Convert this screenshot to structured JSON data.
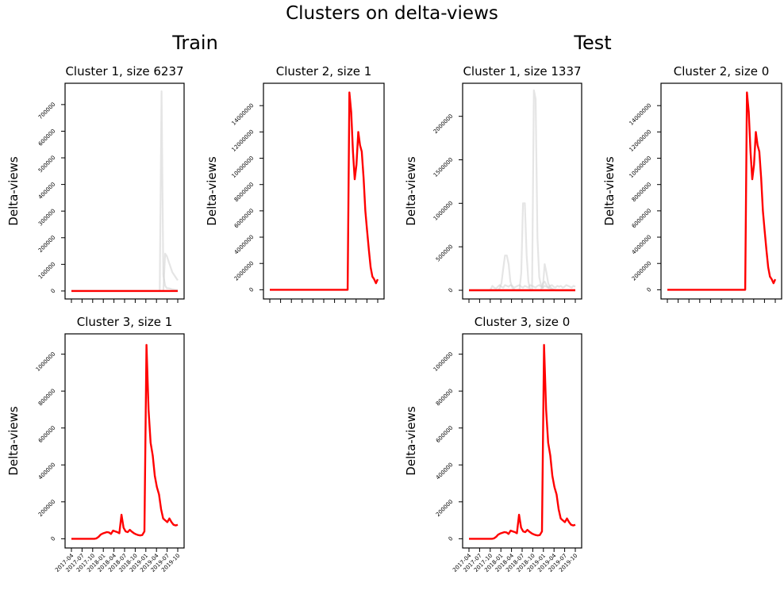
{
  "figure": {
    "title": "Clusters on delta-views",
    "groups": [
      "Train",
      "Test"
    ]
  },
  "colors": {
    "centroid": "#ff0000",
    "members": "#cfcfcf",
    "axis": "#000000"
  },
  "chart_data": [
    {
      "id": "train-c1",
      "type": "line",
      "group": "Train",
      "title": "Cluster 1, size 6237",
      "ylabel": "Delta-views",
      "ylim": [
        -30000,
        780000
      ],
      "yticks": [
        0,
        100000,
        200000,
        300000,
        400000,
        500000,
        600000,
        700000
      ],
      "xticks": [
        "2017-04",
        "2017-07",
        "2017-10",
        "2018-01",
        "2018-04",
        "2018-07",
        "2018-10",
        "2019-01",
        "2019-04",
        "2019-07",
        "2019-10"
      ],
      "show_xtick_labels": false,
      "centroid": [
        0,
        0,
        0,
        0,
        0,
        0,
        0,
        0,
        0,
        0,
        0,
        0,
        0,
        0,
        0,
        0,
        0,
        0,
        0,
        0,
        0,
        0,
        0,
        0,
        0,
        0,
        0,
        0,
        0,
        0,
        0,
        0,
        0,
        0,
        0,
        0,
        0,
        0,
        0,
        0,
        0,
        0,
        0,
        0,
        0,
        0,
        0,
        0,
        0,
        0,
        0,
        0,
        0,
        0,
        0,
        0,
        0,
        0,
        0,
        0
      ],
      "members": [
        [
          0,
          0,
          0,
          0,
          0,
          0,
          0,
          0,
          0,
          0,
          0,
          0,
          0,
          0,
          0,
          0,
          0,
          0,
          0,
          0,
          0,
          0,
          0,
          0,
          0,
          0,
          0,
          0,
          0,
          0,
          0,
          0,
          0,
          0,
          0,
          0,
          0,
          0,
          0,
          0,
          0,
          0,
          0,
          0,
          0,
          0,
          0,
          0,
          0,
          0,
          750000,
          60000,
          20000,
          10000,
          10000,
          8000,
          6000,
          5000,
          4000,
          4000
        ],
        [
          0,
          0,
          0,
          0,
          0,
          0,
          0,
          0,
          0,
          0,
          0,
          0,
          0,
          0,
          0,
          0,
          0,
          0,
          0,
          0,
          0,
          0,
          0,
          0,
          0,
          0,
          0,
          0,
          0,
          0,
          0,
          0,
          0,
          0,
          0,
          0,
          0,
          0,
          0,
          0,
          0,
          0,
          0,
          0,
          0,
          0,
          0,
          0,
          0,
          0,
          0,
          0,
          140000,
          130000,
          110000,
          90000,
          70000,
          60000,
          50000,
          40000
        ],
        [
          0,
          0,
          0,
          0,
          0,
          0,
          0,
          0,
          0,
          0,
          0,
          0,
          0,
          0,
          0,
          0,
          0,
          0,
          0,
          0,
          0,
          0,
          0,
          0,
          0,
          0,
          0,
          0,
          0,
          0,
          0,
          0,
          0,
          0,
          0,
          0,
          0,
          0,
          0,
          0,
          0,
          0,
          0,
          0,
          0,
          0,
          0,
          0,
          0,
          0,
          0,
          0,
          0,
          0,
          0,
          0,
          0,
          0,
          0,
          0
        ]
      ]
    },
    {
      "id": "train-c2",
      "type": "line",
      "group": "Train",
      "title": "Cluster 2, size 1",
      "ylabel": "Delta-views",
      "ylim": [
        -700000,
        15700000
      ],
      "yticks": [
        0,
        2000000,
        4000000,
        6000000,
        8000000,
        10000000,
        12000000,
        14000000
      ],
      "xticks": [
        "2017-04",
        "2017-07",
        "2017-10",
        "2018-01",
        "2018-04",
        "2018-07",
        "2018-10",
        "2019-01",
        "2019-04",
        "2019-07",
        "2019-10"
      ],
      "show_xtick_labels": false,
      "centroid": [
        0,
        0,
        0,
        0,
        0,
        0,
        0,
        0,
        0,
        0,
        0,
        0,
        0,
        0,
        0,
        0,
        0,
        0,
        0,
        0,
        0,
        0,
        0,
        0,
        0,
        0,
        0,
        0,
        0,
        0,
        0,
        0,
        0,
        0,
        0,
        0,
        0,
        0,
        0,
        0,
        0,
        0,
        0,
        0,
        0,
        15000000,
        13500000,
        10500000,
        8400000,
        9500000,
        12000000,
        11000000,
        10500000,
        8500000,
        6000000,
        4500000,
        3000000,
        1700000,
        1000000,
        800000,
        500000,
        800000
      ],
      "members": []
    },
    {
      "id": "train-c3",
      "type": "line",
      "group": "Train",
      "title": "Cluster 3, size 1",
      "ylabel": "Delta-views",
      "ylim": [
        -50000,
        1110000
      ],
      "yticks": [
        0,
        200000,
        400000,
        600000,
        800000,
        1000000
      ],
      "xticks": [
        "2017-04",
        "2017-07",
        "2017-10",
        "2018-01",
        "2018-04",
        "2018-07",
        "2018-10",
        "2019-01",
        "2019-04",
        "2019-07",
        "2019-10"
      ],
      "show_xtick_labels": true,
      "centroid": [
        0,
        0,
        0,
        0,
        0,
        0,
        0,
        0,
        0,
        0,
        0,
        0,
        2000,
        10000,
        22000,
        28000,
        32000,
        36000,
        34000,
        26000,
        44000,
        40000,
        36000,
        30000,
        130000,
        60000,
        40000,
        36000,
        48000,
        38000,
        30000,
        24000,
        20000,
        18000,
        20000,
        40000,
        1050000,
        700000,
        520000,
        450000,
        340000,
        280000,
        240000,
        160000,
        110000,
        100000,
        90000,
        110000,
        90000,
        76000,
        72000,
        76000
      ],
      "members": []
    },
    {
      "id": "test-c1",
      "type": "line",
      "group": "Test",
      "title": "Cluster 1, size 1337",
      "ylabel": "Delta-views",
      "ylim": [
        -100000,
        2380000
      ],
      "yticks": [
        0,
        500000,
        1000000,
        1500000,
        2000000
      ],
      "xticks": [
        "2017-04",
        "2017-07",
        "2017-10",
        "2018-01",
        "2018-04",
        "2018-07",
        "2018-10",
        "2019-01",
        "2019-04",
        "2019-07",
        "2019-10"
      ],
      "show_xtick_labels": false,
      "centroid": [
        0,
        0,
        0,
        0,
        0,
        0,
        0,
        0,
        0,
        0,
        0,
        0,
        0,
        0,
        0,
        0,
        0,
        0,
        0,
        0,
        0,
        0,
        0,
        0,
        0,
        0,
        0,
        0,
        0,
        0,
        0,
        0,
        0,
        0,
        0,
        0,
        0,
        0,
        0,
        0,
        0,
        0,
        0,
        0,
        0,
        0,
        0,
        0,
        0,
        0,
        0,
        0,
        0,
        0,
        0,
        0,
        0,
        0,
        0,
        0
      ],
      "members": [
        [
          0,
          0,
          0,
          0,
          0,
          0,
          0,
          0,
          0,
          0,
          0,
          0,
          0,
          0,
          0,
          0,
          0,
          20000,
          80000,
          250000,
          400000,
          400000,
          300000,
          100000,
          30000,
          10000,
          0,
          0,
          0,
          0,
          0,
          0,
          0,
          0,
          0,
          0,
          0,
          0,
          0,
          0,
          0,
          0,
          0,
          0,
          0,
          0,
          0,
          0,
          0,
          0,
          0,
          0,
          0,
          0,
          0,
          0,
          0,
          0,
          0,
          0
        ],
        [
          0,
          0,
          0,
          0,
          0,
          0,
          0,
          0,
          0,
          0,
          0,
          0,
          0,
          0,
          0,
          0,
          0,
          0,
          0,
          0,
          0,
          0,
          0,
          0,
          0,
          0,
          0,
          0,
          0,
          200000,
          1000000,
          1000000,
          400000,
          100000,
          0,
          0,
          2300000,
          2200000,
          600000,
          150000,
          60000,
          30000,
          300000,
          200000,
          80000,
          40000,
          20000,
          10000,
          0,
          0,
          0,
          0,
          0,
          0,
          0,
          0,
          0,
          0,
          0,
          0
        ],
        [
          0,
          0,
          0,
          0,
          0,
          0,
          0,
          0,
          0,
          0,
          0,
          0,
          10000,
          50000,
          30000,
          20000,
          40000,
          60000,
          40000,
          30000,
          60000,
          50000,
          40000,
          60000,
          50000,
          30000,
          40000,
          50000,
          60000,
          40000,
          30000,
          50000,
          40000,
          30000,
          60000,
          50000,
          40000,
          30000,
          50000,
          60000,
          40000,
          30000,
          50000,
          40000,
          30000,
          50000,
          60000,
          40000,
          30000,
          50000,
          40000,
          50000,
          30000,
          40000,
          60000,
          50000,
          40000,
          30000,
          50000,
          40000
        ],
        [
          0,
          0,
          0,
          0,
          0,
          0,
          0,
          0,
          0,
          0,
          0,
          0,
          0,
          0,
          0,
          0,
          0,
          0,
          0,
          0,
          0,
          0,
          0,
          0,
          0,
          0,
          0,
          0,
          0,
          0,
          0,
          0,
          0,
          0,
          0,
          0,
          0,
          0,
          0,
          0,
          0,
          80000,
          100000,
          60000,
          30000,
          20000,
          10000,
          5000,
          0,
          0,
          0,
          0,
          0,
          0,
          0,
          0,
          0,
          0,
          0,
          0
        ]
      ]
    },
    {
      "id": "test-c2",
      "type": "line",
      "group": "Test",
      "title": "Cluster 2, size 0",
      "ylabel": "Delta-views",
      "ylim": [
        -700000,
        15700000
      ],
      "yticks": [
        0,
        2000000,
        4000000,
        6000000,
        8000000,
        10000000,
        12000000,
        14000000
      ],
      "xticks": [
        "2017-04",
        "2017-07",
        "2017-10",
        "2018-01",
        "2018-04",
        "2018-07",
        "2018-10",
        "2019-01",
        "2019-04",
        "2019-07",
        "2019-10"
      ],
      "show_xtick_labels": false,
      "centroid": [
        0,
        0,
        0,
        0,
        0,
        0,
        0,
        0,
        0,
        0,
        0,
        0,
        0,
        0,
        0,
        0,
        0,
        0,
        0,
        0,
        0,
        0,
        0,
        0,
        0,
        0,
        0,
        0,
        0,
        0,
        0,
        0,
        0,
        0,
        0,
        0,
        0,
        0,
        0,
        0,
        0,
        0,
        0,
        0,
        0,
        15000000,
        13500000,
        10500000,
        8400000,
        9500000,
        12000000,
        11000000,
        10500000,
        8500000,
        6000000,
        4500000,
        3000000,
        1700000,
        1000000,
        800000,
        500000,
        800000
      ],
      "members": []
    },
    {
      "id": "test-c3",
      "type": "line",
      "group": "Test",
      "title": "Cluster 3, size 0",
      "ylabel": "Delta-views",
      "ylim": [
        -50000,
        1110000
      ],
      "yticks": [
        0,
        200000,
        400000,
        600000,
        800000,
        1000000
      ],
      "xticks": [
        "2017-04",
        "2017-07",
        "2017-10",
        "2018-01",
        "2018-04",
        "2018-07",
        "2018-10",
        "2019-01",
        "2019-04",
        "2019-07",
        "2019-10"
      ],
      "show_xtick_labels": true,
      "centroid": [
        0,
        0,
        0,
        0,
        0,
        0,
        0,
        0,
        0,
        0,
        0,
        0,
        2000,
        10000,
        22000,
        28000,
        32000,
        36000,
        34000,
        26000,
        44000,
        40000,
        36000,
        30000,
        130000,
        60000,
        40000,
        36000,
        48000,
        38000,
        30000,
        24000,
        20000,
        18000,
        20000,
        40000,
        1050000,
        700000,
        520000,
        450000,
        340000,
        280000,
        240000,
        160000,
        110000,
        100000,
        90000,
        110000,
        90000,
        76000,
        72000,
        76000
      ],
      "members": []
    }
  ]
}
